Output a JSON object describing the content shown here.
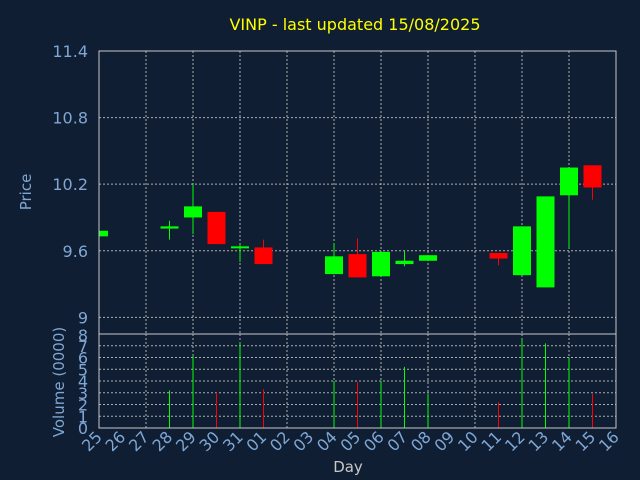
{
  "colors": {
    "background": "#0f1e33",
    "up": "#00ff00",
    "down": "#ff0000",
    "title": "#ffff00",
    "axis_text": "#7fa7d4",
    "grid": "#c8c8c8"
  },
  "chart_data": {
    "type": "candlestick",
    "title": "VINP - last updated 15/08/2025",
    "xlabel": "Day",
    "ylabel": "Price",
    "volume_ylabel": "Volume (0000)",
    "grid": true,
    "price_ylim": [
      8.85,
      11.4
    ],
    "price_ticks": [
      "11.4",
      "10.8",
      "10.2",
      "9.6",
      "9"
    ],
    "volume_ylim": [
      0,
      8
    ],
    "volume_ticks": [
      "8",
      "7",
      "6",
      "5",
      "4",
      "3",
      "2",
      "1",
      "0"
    ],
    "days": [
      "25",
      "26",
      "27",
      "28",
      "29",
      "30",
      "31",
      "01",
      "02",
      "03",
      "04",
      "05",
      "06",
      "07",
      "08",
      "09",
      "10",
      "11",
      "12",
      "13",
      "14",
      "15",
      "16"
    ],
    "candles": [
      {
        "day": "25",
        "open": 9.73,
        "close": 9.78,
        "high": 9.78,
        "low": 9.73,
        "volume": 0
      },
      {
        "day": "28",
        "open": 9.8,
        "close": 9.82,
        "high": 9.87,
        "low": 9.7,
        "volume": 3.2
      },
      {
        "day": "29",
        "open": 9.9,
        "close": 10.0,
        "high": 10.2,
        "low": 9.75,
        "volume": 6.2
      },
      {
        "day": "30",
        "open": 9.95,
        "close": 9.66,
        "high": 9.95,
        "low": 9.66,
        "volume": 3.0
      },
      {
        "day": "31",
        "open": 9.63,
        "close": 9.64,
        "high": 9.66,
        "low": 9.5,
        "volume": 7.3
      },
      {
        "day": "01",
        "open": 9.63,
        "close": 9.48,
        "high": 9.7,
        "low": 9.48,
        "volume": 3.3
      },
      {
        "day": "04",
        "open": 9.39,
        "close": 9.55,
        "high": 9.67,
        "low": 9.39,
        "volume": 4.0
      },
      {
        "day": "05",
        "open": 9.57,
        "close": 9.36,
        "high": 9.71,
        "low": 9.36,
        "volume": 3.9
      },
      {
        "day": "06",
        "open": 9.37,
        "close": 9.59,
        "high": 9.59,
        "low": 9.37,
        "volume": 4.0
      },
      {
        "day": "07",
        "open": 9.48,
        "close": 9.51,
        "high": 9.6,
        "low": 9.46,
        "volume": 5.2
      },
      {
        "day": "08",
        "open": 9.51,
        "close": 9.56,
        "high": 9.56,
        "low": 9.51,
        "volume": 2.9
      },
      {
        "day": "11",
        "open": 9.58,
        "close": 9.53,
        "high": 9.58,
        "low": 9.47,
        "volume": 2.2
      },
      {
        "day": "12",
        "open": 9.38,
        "close": 9.82,
        "high": 9.82,
        "low": 9.38,
        "volume": 7.6
      },
      {
        "day": "13",
        "open": 9.27,
        "close": 10.09,
        "high": 10.09,
        "low": 9.27,
        "volume": 7.2
      },
      {
        "day": "14",
        "open": 10.1,
        "close": 10.35,
        "high": 10.35,
        "low": 9.62,
        "volume": 6.0
      },
      {
        "day": "15",
        "open": 10.37,
        "close": 10.17,
        "high": 10.37,
        "low": 10.06,
        "volume": 2.9
      }
    ]
  }
}
